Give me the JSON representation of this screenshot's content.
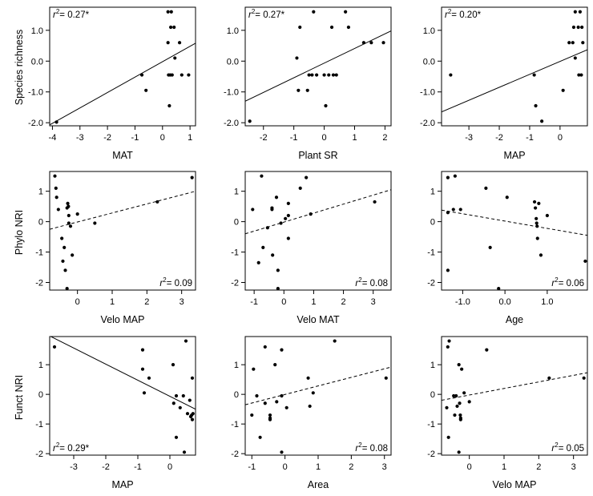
{
  "figure": {
    "row_labels": [
      "Species richness",
      "Phylo NRI",
      "Funct NRI"
    ]
  },
  "chart_data": [
    {
      "type": "scatter",
      "row": 0,
      "col": 0,
      "xlabel": "MAT",
      "ylabel": "Species richness",
      "xlim": [
        -4.1,
        1.2
      ],
      "ylim": [
        -2.1,
        1.75
      ],
      "xticks": [
        -4,
        -3,
        -2,
        -1,
        0,
        1
      ],
      "yticks": [
        -2,
        -1,
        0,
        1
      ],
      "ytick_labels": [
        "-2.0",
        "-1.0",
        "0.0",
        "1.0"
      ],
      "grid": false,
      "annotation": {
        "prefix": "r",
        "sup": "2",
        "text": "= 0.27*",
        "position": "top-left"
      },
      "trend": {
        "style": "solid",
        "x": [
          -4.1,
          1.2
        ],
        "y": [
          -2.07,
          0.58
        ]
      },
      "points": [
        {
          "x": -3.85,
          "y": -1.98
        },
        {
          "x": -0.75,
          "y": -0.45
        },
        {
          "x": -0.6,
          "y": -0.95
        },
        {
          "x": 0.2,
          "y": 1.6
        },
        {
          "x": 0.32,
          "y": 1.6
        },
        {
          "x": 0.2,
          "y": 0.6
        },
        {
          "x": 0.3,
          "y": 1.1
        },
        {
          "x": 0.42,
          "y": 1.1
        },
        {
          "x": 0.22,
          "y": -0.45
        },
        {
          "x": 0.28,
          "y": -0.45
        },
        {
          "x": 0.35,
          "y": -0.45
        },
        {
          "x": 0.25,
          "y": -1.45
        },
        {
          "x": 0.45,
          "y": 0.1
        },
        {
          "x": 0.62,
          "y": 0.6
        },
        {
          "x": 0.7,
          "y": -0.45
        },
        {
          "x": 0.95,
          "y": -0.45
        }
      ]
    },
    {
      "type": "scatter",
      "row": 0,
      "col": 1,
      "xlabel": "Plant SR",
      "ylabel": "",
      "xlim": [
        -2.6,
        2.2
      ],
      "ylim": [
        -2.1,
        1.75
      ],
      "xticks": [
        -2,
        -1,
        0,
        1,
        2
      ],
      "yticks": [
        -2,
        -1,
        0,
        1
      ],
      "ytick_labels": [
        "-2.0",
        "-1.0",
        "0.0",
        "1.0"
      ],
      "grid": false,
      "annotation": {
        "prefix": "r",
        "sup": "2",
        "text": "= 0.27*",
        "position": "top-left"
      },
      "trend": {
        "style": "solid",
        "x": [
          -2.6,
          2.2
        ],
        "y": [
          -1.3,
          0.98
        ]
      },
      "points": [
        {
          "x": -2.45,
          "y": -1.95
        },
        {
          "x": -0.9,
          "y": 0.1
        },
        {
          "x": -0.85,
          "y": -0.95
        },
        {
          "x": -0.8,
          "y": 1.1
        },
        {
          "x": -0.55,
          "y": -0.95
        },
        {
          "x": -0.5,
          "y": -0.45
        },
        {
          "x": -0.4,
          "y": -0.45
        },
        {
          "x": -0.35,
          "y": 1.6
        },
        {
          "x": -0.25,
          "y": -0.45
        },
        {
          "x": 0.0,
          "y": -0.45
        },
        {
          "x": 0.05,
          "y": -1.45
        },
        {
          "x": 0.15,
          "y": -0.45
        },
        {
          "x": 0.25,
          "y": 1.1
        },
        {
          "x": 0.3,
          "y": -0.45
        },
        {
          "x": 0.4,
          "y": -0.45
        },
        {
          "x": 0.7,
          "y": 1.6
        },
        {
          "x": 0.8,
          "y": 1.1
        },
        {
          "x": 1.3,
          "y": 0.6
        },
        {
          "x": 1.55,
          "y": 0.6
        },
        {
          "x": 1.95,
          "y": 0.6
        }
      ]
    },
    {
      "type": "scatter",
      "row": 0,
      "col": 2,
      "xlabel": "MAP",
      "ylabel": "",
      "xlim": [
        -3.9,
        0.9
      ],
      "ylim": [
        -2.1,
        1.75
      ],
      "xticks": [
        -3,
        -2,
        -1,
        0
      ],
      "yticks": [
        -2,
        -1,
        0,
        1
      ],
      "ytick_labels": [
        "-2.0",
        "-1.0",
        "0.0",
        "1.0"
      ],
      "grid": false,
      "annotation": {
        "prefix": "r",
        "sup": "2",
        "text": "= 0.20*",
        "position": "top-left"
      },
      "trend": {
        "style": "solid",
        "x": [
          -3.9,
          0.9
        ],
        "y": [
          -1.65,
          0.37
        ]
      },
      "points": [
        {
          "x": -3.6,
          "y": -0.45
        },
        {
          "x": -0.85,
          "y": -0.45
        },
        {
          "x": -0.8,
          "y": -1.45
        },
        {
          "x": -0.6,
          "y": -1.95
        },
        {
          "x": 0.1,
          "y": -0.95
        },
        {
          "x": 0.3,
          "y": 0.6
        },
        {
          "x": 0.42,
          "y": 0.6
        },
        {
          "x": 0.45,
          "y": 1.1
        },
        {
          "x": 0.5,
          "y": 0.1
        },
        {
          "x": 0.5,
          "y": 1.6
        },
        {
          "x": 0.6,
          "y": 1.1
        },
        {
          "x": 0.62,
          "y": -0.45
        },
        {
          "x": 0.66,
          "y": 1.6
        },
        {
          "x": 0.7,
          "y": -0.45
        },
        {
          "x": 0.72,
          "y": 1.1
        },
        {
          "x": 0.75,
          "y": 0.6
        }
      ]
    },
    {
      "type": "scatter",
      "row": 1,
      "col": 0,
      "xlabel": "Velo MAP",
      "ylabel": "Phylo NRI",
      "xlim": [
        -0.8,
        3.4
      ],
      "ylim": [
        -2.25,
        1.65
      ],
      "xticks": [
        0,
        1,
        2,
        3
      ],
      "yticks": [
        -2,
        -1,
        0,
        1
      ],
      "ytick_labels": [
        "-2",
        "-1",
        "0",
        "1"
      ],
      "grid": false,
      "annotation": {
        "prefix": "r",
        "sup": "2",
        "text": "= 0.09",
        "position": "bottom-right"
      },
      "trend": {
        "style": "dashed",
        "x": [
          -0.8,
          3.4
        ],
        "y": [
          -0.25,
          1.0
        ]
      },
      "points": [
        {
          "x": -0.65,
          "y": 1.5
        },
        {
          "x": -0.62,
          "y": 1.1
        },
        {
          "x": -0.6,
          "y": 0.8
        },
        {
          "x": -0.55,
          "y": 0.4
        },
        {
          "x": -0.45,
          "y": -0.55
        },
        {
          "x": -0.42,
          "y": -1.3
        },
        {
          "x": -0.38,
          "y": -0.85
        },
        {
          "x": -0.35,
          "y": -1.6
        },
        {
          "x": -0.3,
          "y": 0.45
        },
        {
          "x": -0.3,
          "y": -2.2
        },
        {
          "x": -0.28,
          "y": 0.6
        },
        {
          "x": -0.26,
          "y": 0.5
        },
        {
          "x": -0.25,
          "y": 0.2
        },
        {
          "x": -0.25,
          "y": -0.05
        },
        {
          "x": -0.2,
          "y": -0.15
        },
        {
          "x": -0.15,
          "y": -1.1
        },
        {
          "x": 0.0,
          "y": 0.25
        },
        {
          "x": 0.5,
          "y": -0.05
        },
        {
          "x": 2.3,
          "y": 0.65
        },
        {
          "x": 3.3,
          "y": 1.45
        }
      ]
    },
    {
      "type": "scatter",
      "row": 1,
      "col": 1,
      "xlabel": "Velo MAT",
      "ylabel": "",
      "xlim": [
        -1.3,
        3.6
      ],
      "ylim": [
        -2.25,
        1.65
      ],
      "xticks": [
        -1,
        0,
        1,
        2,
        3
      ],
      "yticks": [
        -2,
        -1,
        0,
        1
      ],
      "ytick_labels": [
        "-2",
        "-1",
        "0",
        "1"
      ],
      "grid": false,
      "annotation": {
        "prefix": "r",
        "sup": "2",
        "text": "= 0.08",
        "position": "bottom-right"
      },
      "trend": {
        "style": "dashed",
        "x": [
          -1.3,
          3.6
        ],
        "y": [
          -0.4,
          1.05
        ]
      },
      "points": [
        {
          "x": -1.05,
          "y": 0.4
        },
        {
          "x": -0.85,
          "y": -1.35
        },
        {
          "x": -0.75,
          "y": 1.5
        },
        {
          "x": -0.7,
          "y": -0.85
        },
        {
          "x": -0.55,
          "y": -0.2
        },
        {
          "x": -0.4,
          "y": 0.45
        },
        {
          "x": -0.4,
          "y": 0.4
        },
        {
          "x": -0.38,
          "y": -1.1
        },
        {
          "x": -0.25,
          "y": 0.8
        },
        {
          "x": -0.2,
          "y": -1.6
        },
        {
          "x": -0.2,
          "y": -2.2
        },
        {
          "x": -0.1,
          "y": -0.05
        },
        {
          "x": 0.05,
          "y": 0.1
        },
        {
          "x": 0.15,
          "y": 0.2
        },
        {
          "x": 0.15,
          "y": -0.55
        },
        {
          "x": 0.15,
          "y": 0.6
        },
        {
          "x": 0.55,
          "y": 1.1
        },
        {
          "x": 0.75,
          "y": 1.45
        },
        {
          "x": 0.9,
          "y": 0.25
        },
        {
          "x": 3.05,
          "y": 0.65
        }
      ]
    },
    {
      "type": "scatter",
      "row": 1,
      "col": 2,
      "xlabel": "Age",
      "ylabel": "",
      "xlim": [
        -1.5,
        1.95
      ],
      "ylim": [
        -2.25,
        1.65
      ],
      "xticks": [
        -1.0,
        0.0,
        1.0
      ],
      "yticks": [
        -2,
        -1,
        0,
        1
      ],
      "xtick_labels": [
        "-1.0",
        "0.0",
        "1.0"
      ],
      "ytick_labels": [
        "-2",
        "-1",
        "0",
        "1"
      ],
      "grid": false,
      "annotation": {
        "prefix": "r",
        "sup": "2",
        "text": "= 0.06",
        "position": "bottom-right"
      },
      "trend": {
        "style": "dashed",
        "x": [
          -1.5,
          1.95
        ],
        "y": [
          0.38,
          -0.45
        ]
      },
      "points": [
        {
          "x": -1.35,
          "y": 1.45
        },
        {
          "x": -1.35,
          "y": 0.3
        },
        {
          "x": -1.35,
          "y": -1.6
        },
        {
          "x": -1.22,
          "y": 0.4
        },
        {
          "x": -1.18,
          "y": 1.5
        },
        {
          "x": -1.05,
          "y": 0.4
        },
        {
          "x": -0.45,
          "y": 1.1
        },
        {
          "x": -0.35,
          "y": -0.85
        },
        {
          "x": -0.15,
          "y": -2.2
        },
        {
          "x": 0.05,
          "y": 0.8
        },
        {
          "x": 0.7,
          "y": 0.65
        },
        {
          "x": 0.72,
          "y": 0.45
        },
        {
          "x": 0.74,
          "y": 0.1
        },
        {
          "x": 0.75,
          "y": -0.05
        },
        {
          "x": 0.76,
          "y": -0.15
        },
        {
          "x": 0.77,
          "y": -0.55
        },
        {
          "x": 0.8,
          "y": 0.6
        },
        {
          "x": 0.85,
          "y": -1.1
        },
        {
          "x": 1.0,
          "y": 0.2
        },
        {
          "x": 1.9,
          "y": -1.3
        }
      ]
    },
    {
      "type": "scatter",
      "row": 2,
      "col": 0,
      "xlabel": "MAP",
      "ylabel": "Funct NRI",
      "xlim": [
        -3.75,
        0.8
      ],
      "ylim": [
        -2.05,
        1.95
      ],
      "xticks": [
        -3,
        -2,
        -1,
        0
      ],
      "yticks": [
        -2,
        -1,
        0,
        1
      ],
      "ytick_labels": [
        "-2",
        "-1",
        "0",
        "1"
      ],
      "grid": false,
      "annotation": {
        "prefix": "r",
        "sup": "2",
        "text": "= 0.29*",
        "position": "bottom-left"
      },
      "trend": {
        "style": "solid",
        "x": [
          -3.75,
          0.8
        ],
        "y": [
          1.97,
          -0.5
        ]
      },
      "points": [
        {
          "x": -3.6,
          "y": 1.6
        },
        {
          "x": -0.85,
          "y": 0.85
        },
        {
          "x": -0.85,
          "y": 1.5
        },
        {
          "x": -0.8,
          "y": 0.05
        },
        {
          "x": -0.65,
          "y": 0.55
        },
        {
          "x": 0.1,
          "y": 1.0
        },
        {
          "x": 0.12,
          "y": -0.3
        },
        {
          "x": 0.2,
          "y": -0.05
        },
        {
          "x": 0.2,
          "y": -1.45
        },
        {
          "x": 0.32,
          "y": -0.45
        },
        {
          "x": 0.42,
          "y": -0.05
        },
        {
          "x": 0.45,
          "y": -1.95
        },
        {
          "x": 0.5,
          "y": 1.8
        },
        {
          "x": 0.55,
          "y": -0.65
        },
        {
          "x": 0.62,
          "y": -0.2
        },
        {
          "x": 0.65,
          "y": -0.75
        },
        {
          "x": 0.68,
          "y": -0.7
        },
        {
          "x": 0.7,
          "y": -0.85
        },
        {
          "x": 0.7,
          "y": 0.55
        },
        {
          "x": 0.72,
          "y": -0.65
        }
      ]
    },
    {
      "type": "scatter",
      "row": 2,
      "col": 1,
      "xlabel": "Area",
      "ylabel": "",
      "xlim": [
        -1.2,
        3.2
      ],
      "ylim": [
        -2.05,
        1.95
      ],
      "xticks": [
        -1,
        0,
        1,
        2,
        3
      ],
      "yticks": [
        -2,
        -1,
        0,
        1
      ],
      "ytick_labels": [
        "-2",
        "-1",
        "0",
        "1"
      ],
      "grid": false,
      "annotation": {
        "prefix": "r",
        "sup": "2",
        "text": "= 0.08",
        "position": "bottom-right"
      },
      "trend": {
        "style": "dashed",
        "x": [
          -1.2,
          3.2
        ],
        "y": [
          -0.35,
          0.92
        ]
      },
      "points": [
        {
          "x": -1.0,
          "y": -0.7
        },
        {
          "x": -0.95,
          "y": 0.85
        },
        {
          "x": -0.85,
          "y": -0.05
        },
        {
          "x": -0.75,
          "y": -1.45
        },
        {
          "x": -0.6,
          "y": 1.6
        },
        {
          "x": -0.6,
          "y": -0.3
        },
        {
          "x": -0.45,
          "y": -0.7
        },
        {
          "x": -0.45,
          "y": -0.8
        },
        {
          "x": -0.45,
          "y": -0.85
        },
        {
          "x": -0.3,
          "y": 1.0
        },
        {
          "x": -0.25,
          "y": -0.25
        },
        {
          "x": -0.1,
          "y": -0.05
        },
        {
          "x": -0.1,
          "y": 1.5
        },
        {
          "x": -0.1,
          "y": -1.95
        },
        {
          "x": 0.05,
          "y": -0.45
        },
        {
          "x": 0.7,
          "y": 0.55
        },
        {
          "x": 0.75,
          "y": -0.4
        },
        {
          "x": 0.85,
          "y": 0.05
        },
        {
          "x": 1.5,
          "y": 1.8
        },
        {
          "x": 3.05,
          "y": 0.55
        }
      ]
    },
    {
      "type": "scatter",
      "row": 2,
      "col": 2,
      "xlabel": "Velo MAP",
      "ylabel": "",
      "xlim": [
        -0.8,
        3.4
      ],
      "ylim": [
        -2.05,
        1.95
      ],
      "xticks": [
        0,
        1,
        2,
        3
      ],
      "yticks": [
        -2,
        -1,
        0,
        1
      ],
      "ytick_labels": [
        "-2",
        "-1",
        "0",
        "1"
      ],
      "grid": false,
      "annotation": {
        "prefix": "r",
        "sup": "2",
        "text": "= 0.05",
        "position": "bottom-right"
      },
      "trend": {
        "style": "dashed",
        "x": [
          -0.8,
          3.4
        ],
        "y": [
          -0.2,
          0.73
        ]
      },
      "points": [
        {
          "x": -0.65,
          "y": -0.45
        },
        {
          "x": -0.62,
          "y": 1.6
        },
        {
          "x": -0.6,
          "y": -1.45
        },
        {
          "x": -0.58,
          "y": 1.8
        },
        {
          "x": -0.45,
          "y": -0.05
        },
        {
          "x": -0.42,
          "y": -0.7
        },
        {
          "x": -0.38,
          "y": -0.05
        },
        {
          "x": -0.35,
          "y": -0.4
        },
        {
          "x": -0.3,
          "y": 1.0
        },
        {
          "x": -0.3,
          "y": -1.95
        },
        {
          "x": -0.28,
          "y": -0.3
        },
        {
          "x": -0.26,
          "y": -0.7
        },
        {
          "x": -0.25,
          "y": -0.8
        },
        {
          "x": -0.25,
          "y": -0.85
        },
        {
          "x": -0.22,
          "y": 0.85
        },
        {
          "x": -0.15,
          "y": 0.05
        },
        {
          "x": 0.0,
          "y": -0.25
        },
        {
          "x": 0.5,
          "y": 1.5
        },
        {
          "x": 2.3,
          "y": 0.55
        },
        {
          "x": 3.3,
          "y": 0.55
        }
      ]
    }
  ]
}
